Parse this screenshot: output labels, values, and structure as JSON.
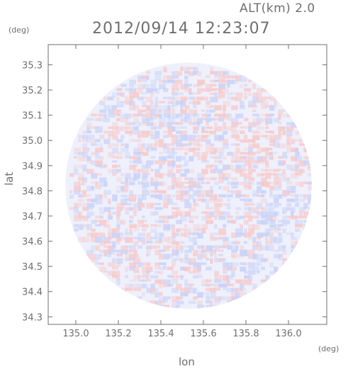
{
  "header": {
    "altitude": "ALT(km) 2.0",
    "timestamp": "2012/09/14 12:23:07"
  },
  "chart_data": {
    "type": "heatmap",
    "subtype": "circular radar scan (doppler-like diverging colormap)",
    "x_unit": "(deg)",
    "y_unit": "(deg)",
    "xlabel": "lon",
    "ylabel": "lat",
    "xlim": [
      134.87,
      136.18
    ],
    "ylim": [
      34.27,
      35.38
    ],
    "x_ticks": [
      {
        "value": 135.0,
        "label": "135.0"
      },
      {
        "value": 135.2,
        "label": "135.2"
      },
      {
        "value": 135.4,
        "label": "135.4"
      },
      {
        "value": 135.6,
        "label": "135.6"
      },
      {
        "value": 135.8,
        "label": "135.8"
      },
      {
        "value": 136.0,
        "label": "136.0"
      }
    ],
    "y_ticks": [
      {
        "value": 34.3,
        "label": "34.3"
      },
      {
        "value": 34.4,
        "label": "34.4"
      },
      {
        "value": 34.5,
        "label": "34.5"
      },
      {
        "value": 34.6,
        "label": "34.6"
      },
      {
        "value": 34.7,
        "label": "34.7"
      },
      {
        "value": 34.8,
        "label": "34.8"
      },
      {
        "value": 34.9,
        "label": "34.9"
      },
      {
        "value": 35.0,
        "label": "35.0"
      },
      {
        "value": 35.1,
        "label": "35.1"
      },
      {
        "value": 35.2,
        "label": "35.2"
      },
      {
        "value": 35.3,
        "label": "35.3"
      }
    ],
    "scan_center": {
      "lon": 135.53,
      "lat": 34.82
    },
    "scan_radius_deg": 0.53,
    "colors": {
      "positive": "#f7c9c9",
      "negative": "#c9d2f7",
      "neutral": "#eef0fb",
      "axis": "#6f6f6f"
    },
    "grid": false,
    "legend": "none"
  }
}
